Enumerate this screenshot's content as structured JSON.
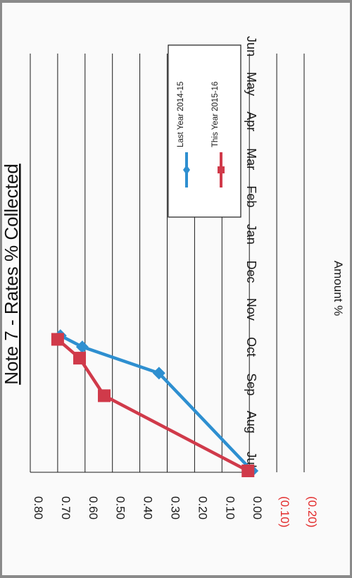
{
  "chart_data": {
    "type": "line",
    "title": "Note 7 - Rates % Collected",
    "ylabel": "Amount %",
    "xlabel": "",
    "categories": [
      "Jul",
      "Aug",
      "Sep",
      "Oct",
      "Nov",
      "Dec",
      "Jan",
      "Feb",
      "Mar",
      "Apr",
      "May",
      "Jun"
    ],
    "category_labels": [
      "Jul",
      "Aug",
      "Sep",
      "Oct",
      "Nov",
      "Dec",
      "Jan",
      "Feb",
      "Mar",
      "Apr",
      "May",
      "Jun"
    ],
    "ylim": [
      -0.2,
      0.8
    ],
    "y_ticks": [
      {
        "value": 0.8,
        "label": "0.80"
      },
      {
        "value": 0.7,
        "label": "0.70"
      },
      {
        "value": 0.6,
        "label": "0.60"
      },
      {
        "value": 0.5,
        "label": "0.50"
      },
      {
        "value": 0.4,
        "label": "0.40"
      },
      {
        "value": 0.3,
        "label": "0.30"
      },
      {
        "value": 0.2,
        "label": "0.20"
      },
      {
        "value": 0.1,
        "label": "0.10"
      },
      {
        "value": 0.0,
        "label": "0.00"
      },
      {
        "value": -0.1,
        "label": "(0.10)"
      },
      {
        "value": -0.2,
        "label": "(0.20)"
      }
    ],
    "grid": true,
    "orientation": "rotated 90 degrees clockwise",
    "legend_position": "top-right",
    "series": [
      {
        "name": "Last Year 2014-15",
        "color": "#2e8fd0",
        "marker": "diamond",
        "points": [
          [
            -0.3,
            -0.01
          ],
          [
            2.3,
            0.33
          ],
          [
            3.0,
            0.61
          ],
          [
            3.3,
            0.69
          ]
        ]
      },
      {
        "name": "This Year 2015-16",
        "color": "#d03a4a",
        "marker": "square",
        "points": [
          [
            -0.3,
            0.005
          ],
          [
            1.7,
            0.53
          ],
          [
            2.7,
            0.62
          ],
          [
            3.2,
            0.7
          ]
        ]
      }
    ]
  },
  "colors": {
    "negative_tick": "#e22a2a",
    "text": "#1a1a1a",
    "gridline": "#1a1a1a"
  }
}
